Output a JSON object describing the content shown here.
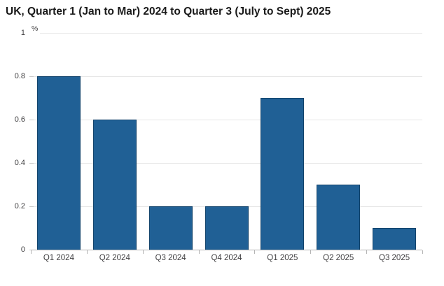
{
  "chart_data": {
    "type": "bar",
    "title": "UK, Quarter 1 (Jan to Mar) 2024 to Quarter 3 (July to Sept) 2025",
    "unit_label": "%",
    "categories": [
      "Q1 2024",
      "Q2 2024",
      "Q3 2024",
      "Q4 2024",
      "Q1 2025",
      "Q2 2025",
      "Q3 2025"
    ],
    "values": [
      0.8,
      0.6,
      0.2,
      0.2,
      0.7,
      0.3,
      0.1
    ],
    "xlabel": "",
    "ylabel": "%",
    "ylim": [
      0,
      1
    ],
    "yticks": [
      0,
      0.2,
      0.4,
      0.6,
      0.8,
      1
    ],
    "grid": true,
    "legend": "none",
    "colors": {
      "bar_fill": "#206095",
      "bar_border": "#12436b",
      "gridline": "#e6e6e6",
      "axis_line": "#b3b3b3",
      "tick_label": "#414042",
      "title": "#1a1a1a"
    }
  }
}
